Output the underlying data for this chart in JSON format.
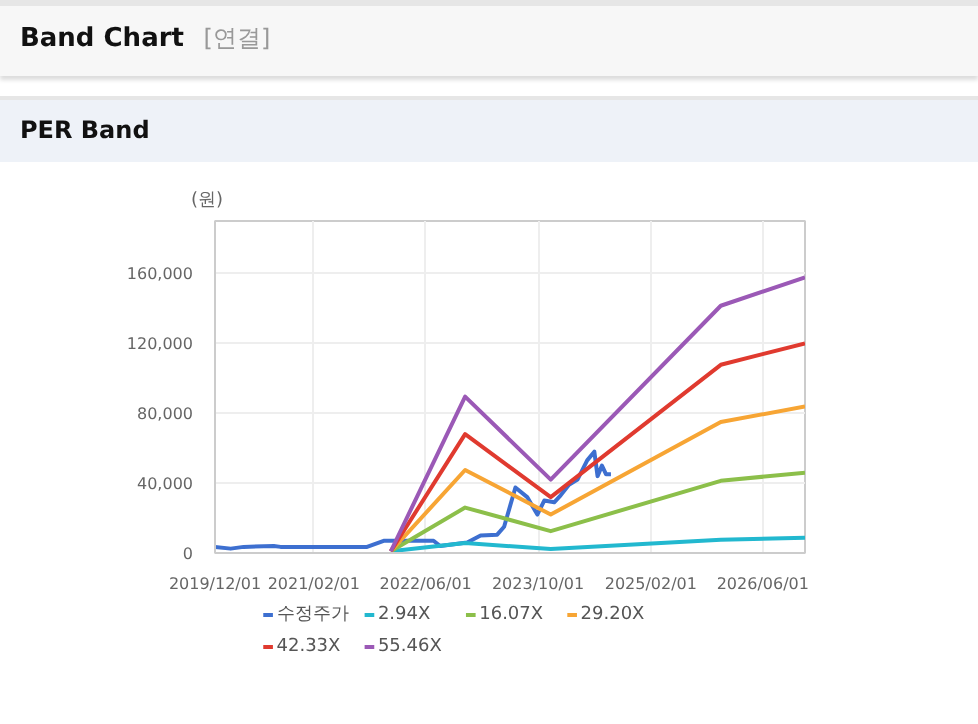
{
  "chart_data": {
    "type": "line",
    "title": "Band Chart",
    "subtitle": "[연결]",
    "annotations": [
      "PER Band"
    ],
    "ylabel": "(원)",
    "xlim": [
      "2019-12-01",
      "2026-12-01"
    ],
    "ylim": [
      0,
      190000
    ],
    "xticks": [
      {
        "value": "2019-12-01",
        "label": "2019/12/01"
      },
      {
        "value": "2021-02-01",
        "label": "2021/02/01"
      },
      {
        "value": "2022-06-01",
        "label": "2022/06/01"
      },
      {
        "value": "2023-10-01",
        "label": "2023/10/01"
      },
      {
        "value": "2025-02-01",
        "label": "2025/02/01"
      },
      {
        "value": "2026-06-01",
        "label": "2026/06/01"
      }
    ],
    "yticks": [
      0,
      {
        "value": 40000,
        "label": "40,000"
      },
      {
        "value": 80000,
        "label": "80,000"
      },
      {
        "value": 120000,
        "label": "120,000"
      },
      {
        "value": 160000,
        "label": "160,000"
      }
    ],
    "grid": true,
    "legend": "bottom",
    "series": [
      {
        "name": "수정주가",
        "color": "#3d6fd0",
        "x": [
          "2019-12-01",
          "2020-02-07",
          "2020-04-03",
          "2020-08-12",
          "2020-09-10",
          "2021-09-20",
          "2021-12-01",
          "2022-01-15",
          "2022-07-05",
          "2022-08-03",
          "2022-11-28",
          "2023-01-25",
          "2023-04-07",
          "2023-05-07",
          "2023-06-25",
          "2023-08-15",
          "2023-09-28",
          "2023-10-28",
          "2023-12-10",
          "2024-01-07",
          "2024-02-12",
          "2024-03-20",
          "2024-05-01",
          "2024-06-01",
          "2024-06-15",
          "2024-07-04",
          "2024-07-22",
          "2024-08-12"
        ],
        "values": [
          3500,
          2500,
          3500,
          4000,
          3500,
          3500,
          7000,
          7000,
          7000,
          4000,
          6000,
          10000,
          10500,
          15000,
          37500,
          32000,
          22000,
          30000,
          29000,
          33000,
          39000,
          42000,
          53000,
          58000,
          44000,
          50000,
          45000,
          45000
        ]
      },
      {
        "name": "2.94X",
        "color": "#22b8cf",
        "x": [
          "2022-01-01",
          "2022-11-19",
          "2023-11-25",
          "2025-12-01",
          "2026-12-01"
        ],
        "values": [
          1000,
          5700,
          2300,
          7600,
          8700
        ]
      },
      {
        "name": "16.07X",
        "color": "#8cbf4a",
        "x": [
          "2022-01-01",
          "2022-11-19",
          "2023-11-25",
          "2025-12-01",
          "2026-12-01"
        ],
        "values": [
          1000,
          26000,
          12500,
          41300,
          46000
        ]
      },
      {
        "name": "29.20X",
        "color": "#f7a534",
        "x": [
          "2022-01-01",
          "2022-11-19",
          "2023-11-25",
          "2025-12-01",
          "2026-12-01"
        ],
        "values": [
          1000,
          47500,
          22000,
          75000,
          83800
        ]
      },
      {
        "name": "42.33X",
        "color": "#e03a2f",
        "x": [
          "2022-01-01",
          "2022-11-19",
          "2023-11-25",
          "2025-12-01",
          "2026-12-01"
        ],
        "values": [
          1000,
          68000,
          32000,
          107700,
          120000
        ]
      },
      {
        "name": "55.46X",
        "color": "#9b59b6",
        "x": [
          "2022-01-01",
          "2022-11-19",
          "2023-11-25",
          "2025-12-01",
          "2026-12-01"
        ],
        "values": [
          1000,
          89500,
          42000,
          141500,
          157700
        ]
      }
    ]
  }
}
